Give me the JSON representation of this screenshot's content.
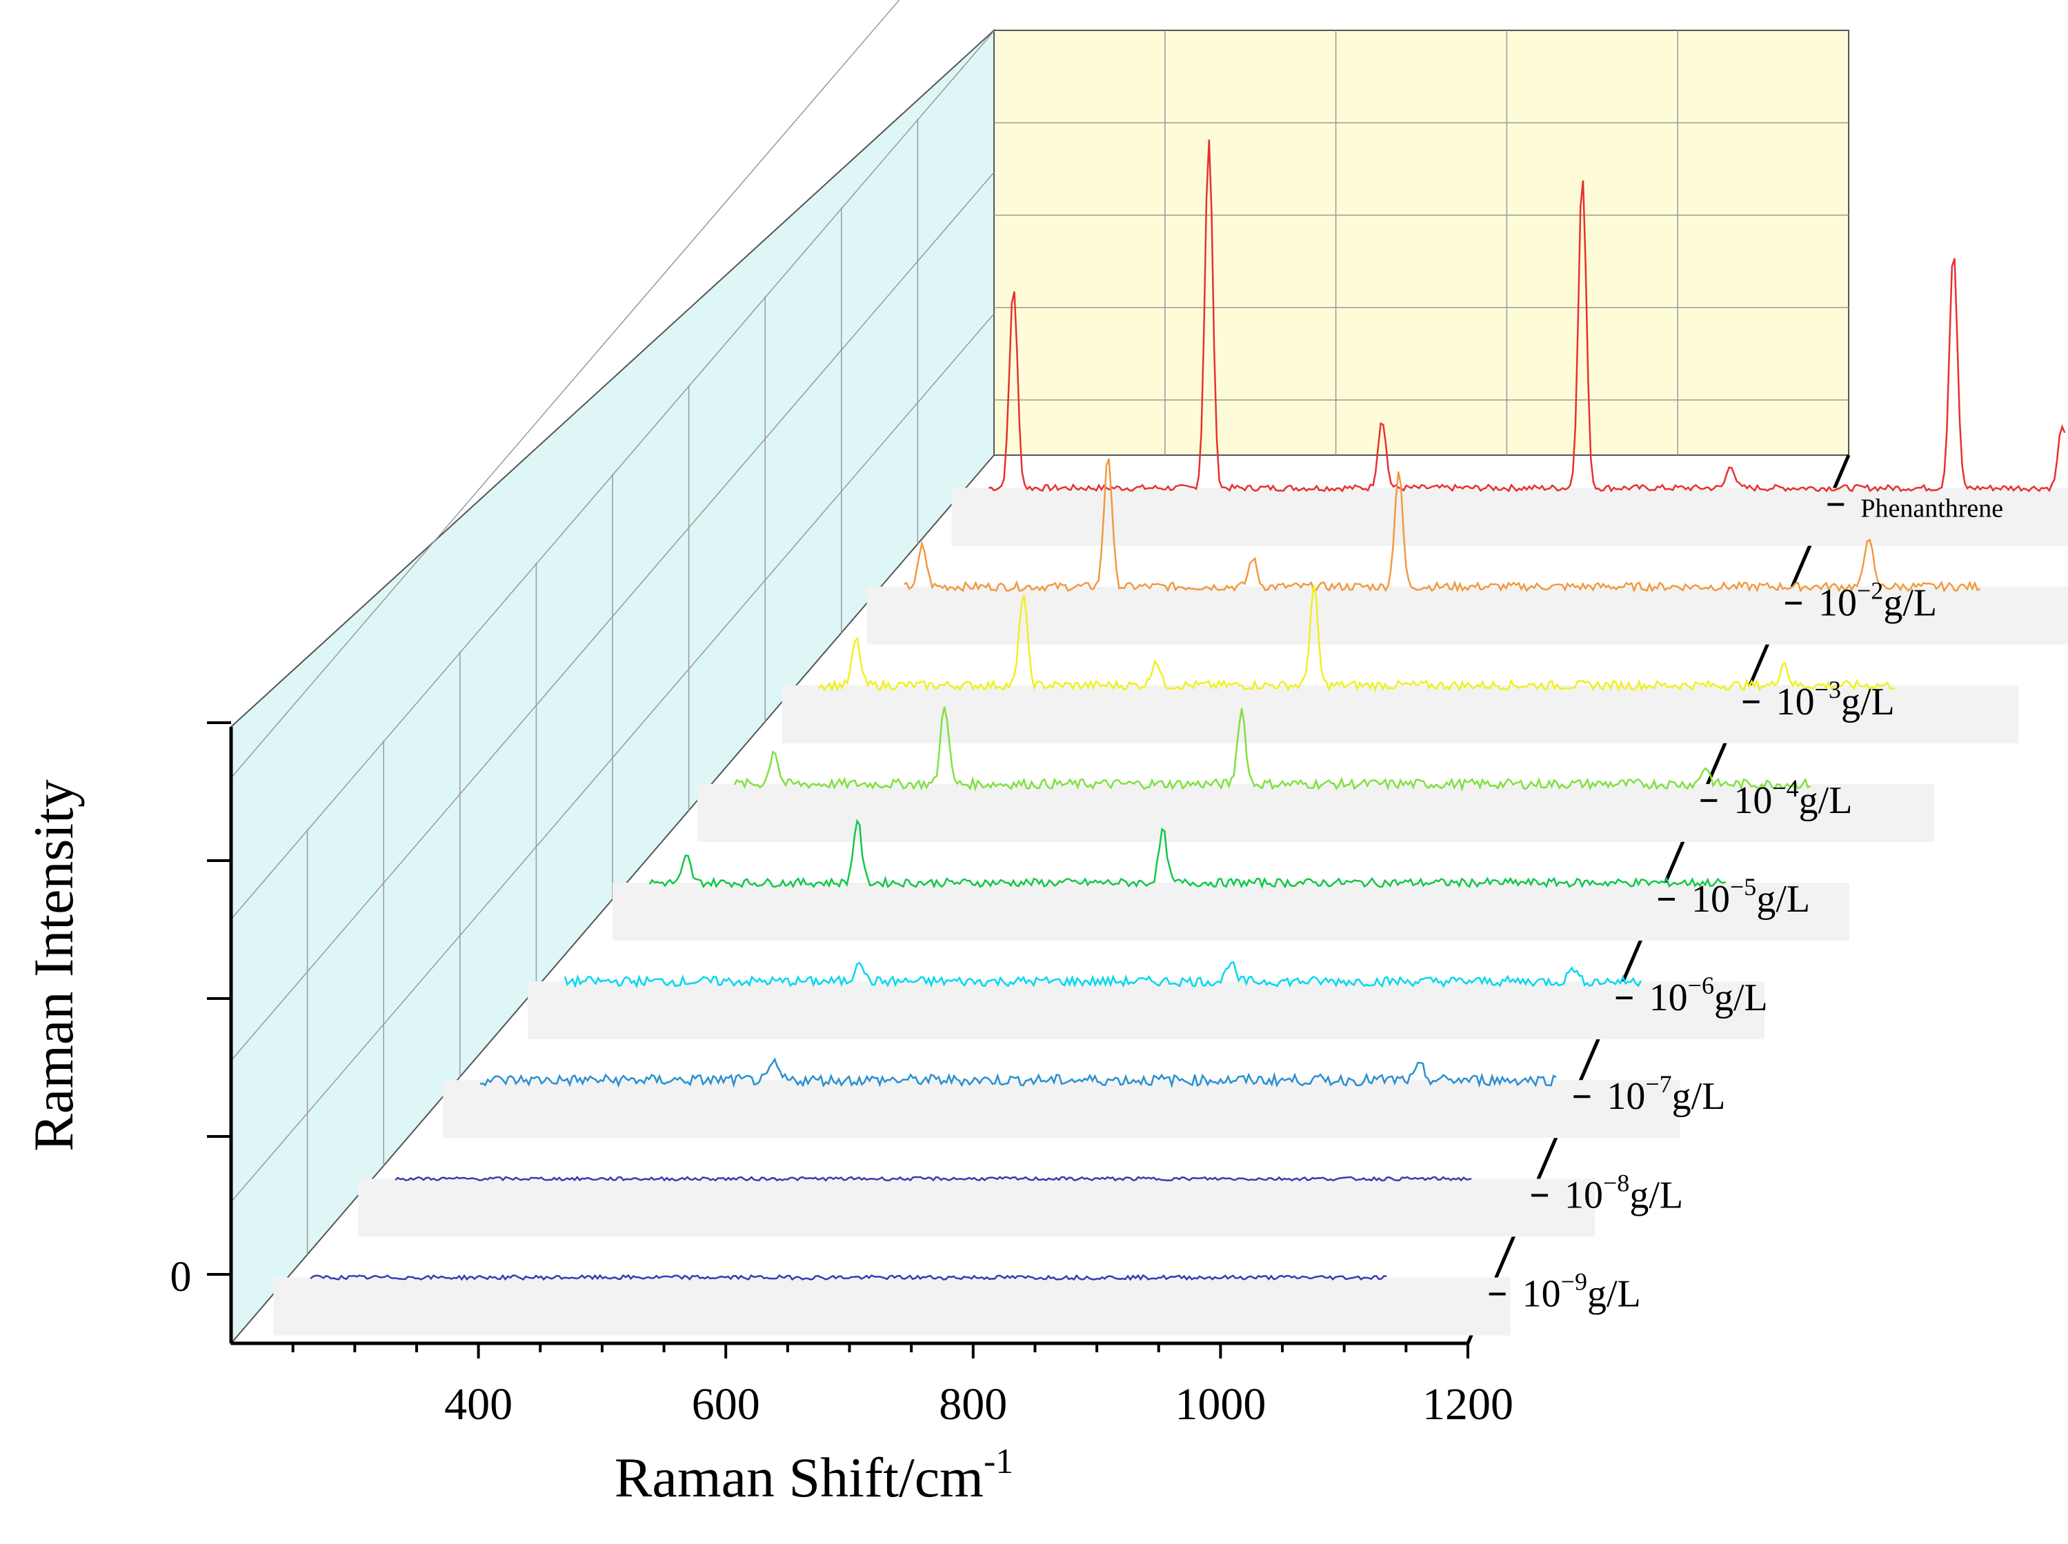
{
  "chart_data": {
    "type": "line",
    "subtype": "3d-waterfall",
    "title": "",
    "xlabel": "Raman Shift/cm",
    "xlabel_sup": "-1",
    "ylabel": "Raman Intensity",
    "xlim": [
      200,
      1200
    ],
    "x_ticks": [
      400,
      600,
      800,
      1000,
      1200
    ],
    "y_ticks": [
      "0"
    ],
    "series": [
      {
        "name": "10",
        "exp": "−9",
        "unit": "g/L",
        "color": "#3a3ab4",
        "peaks": [],
        "noise": 0.6,
        "baseline_drift": 1
      },
      {
        "name": "10",
        "exp": "−8",
        "unit": "g/L",
        "color": "#3a3ab4",
        "peaks": [],
        "noise": 0.5,
        "baseline_drift": 0
      },
      {
        "name": "10",
        "exp": "−7",
        "unit": "g/L",
        "color": "#2a8fd0",
        "peaks": [
          [
            468,
            6
          ],
          [
            990,
            5
          ]
        ],
        "noise": 1.6,
        "baseline_drift": 0
      },
      {
        "name": "10",
        "exp": "−6",
        "unit": "g/L",
        "color": "#00d8f0",
        "peaks": [
          [
            468,
            8
          ],
          [
            768,
            7
          ],
          [
            1045,
            5
          ]
        ],
        "noise": 1.4,
        "baseline_drift": 1
      },
      {
        "name": "10",
        "exp": "−5",
        "unit": "g/L",
        "color": "#10c848",
        "peaks": [
          [
            260,
            9
          ],
          [
            398,
            22
          ],
          [
            645,
            18
          ]
        ],
        "noise": 1.2,
        "baseline_drift": 0
      },
      {
        "name": "10",
        "exp": "−4",
        "unit": "g/L",
        "color": "#80e040",
        "peaks": [
          [
            262,
            12
          ],
          [
            400,
            28
          ],
          [
            640,
            26
          ],
          [
            1015,
            6
          ]
        ],
        "noise": 1.4,
        "baseline_drift": 0
      },
      {
        "name": "10",
        "exp": "−3",
        "unit": "g/L",
        "color": "#f0f020",
        "peaks": [
          [
            260,
            16
          ],
          [
            395,
            32
          ],
          [
            502,
            9
          ],
          [
            630,
            34
          ],
          [
            1010,
            8
          ]
        ],
        "noise": 1.3,
        "baseline_drift": 0
      },
      {
        "name": "10",
        "exp": "−2",
        "unit": "g/L",
        "color": "#f09a40",
        "peaks": [
          [
            245,
            14
          ],
          [
            395,
            46
          ],
          [
            512,
            10
          ],
          [
            630,
            40
          ],
          [
            1010,
            18
          ]
        ],
        "noise": 1.2,
        "baseline_drift": 0
      },
      {
        "name": "Phenanthrene",
        "exp": "",
        "unit": "",
        "color": "#e83030",
        "peaks": [
          [
            250,
            70
          ],
          [
            408,
            120
          ],
          [
            548,
            24
          ],
          [
            710,
            108
          ],
          [
            830,
            8
          ],
          [
            1010,
            82
          ],
          [
            1098,
            22
          ]
        ],
        "noise": 0.9,
        "baseline_drift": 0
      }
    ]
  }
}
